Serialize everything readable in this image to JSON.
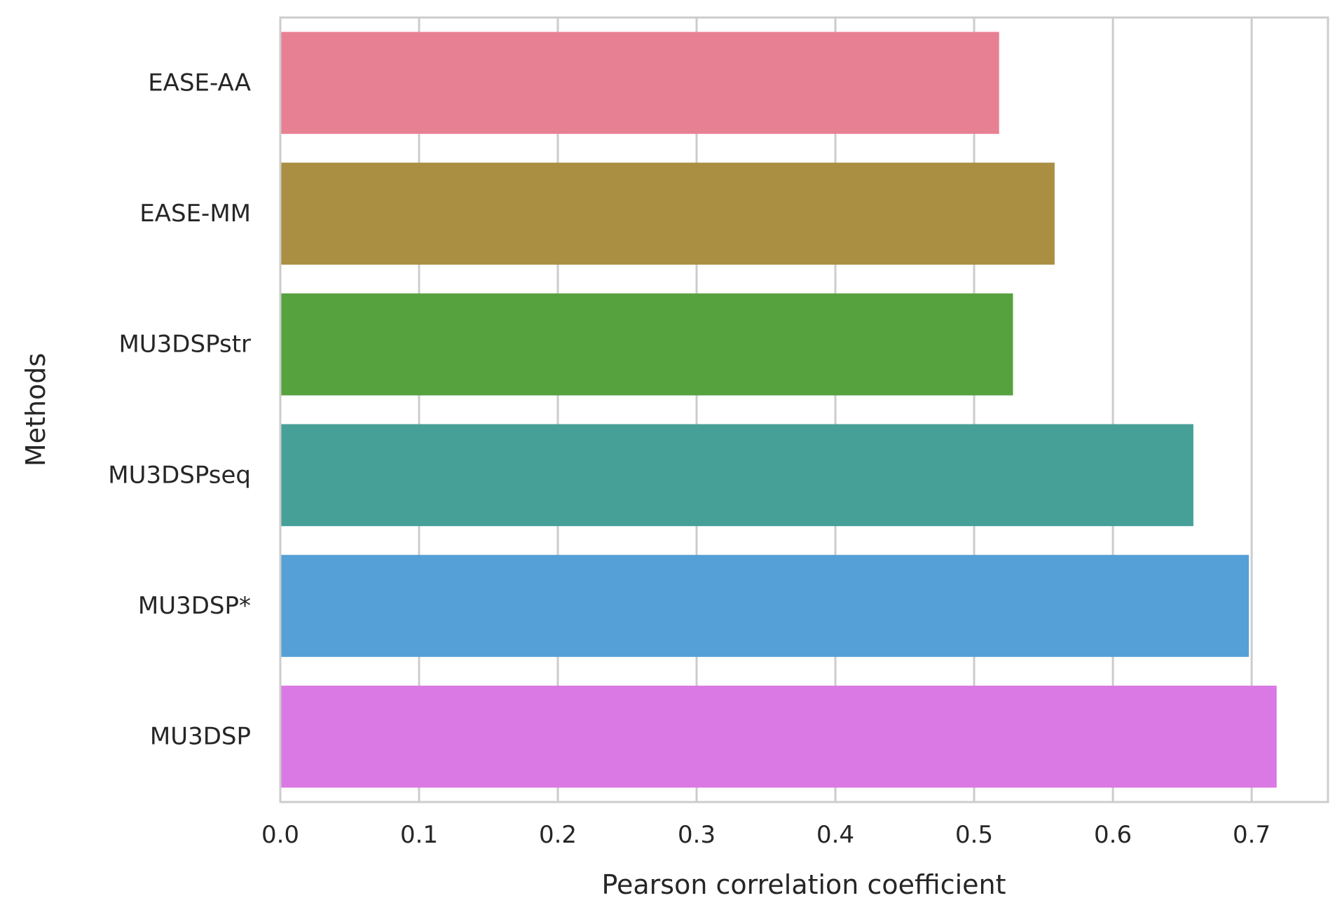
{
  "chart_data": {
    "type": "bar",
    "orientation": "horizontal",
    "xlabel": "Pearson correlation coefficient",
    "ylabel": "Methods",
    "xlim": [
      0.0,
      0.755
    ],
    "xticks": [
      0.0,
      0.1,
      0.2,
      0.3,
      0.4,
      0.5,
      0.6,
      0.7
    ],
    "xtick_labels": [
      "0.0",
      "0.1",
      "0.2",
      "0.3",
      "0.4",
      "0.5",
      "0.6",
      "0.7"
    ],
    "categories": [
      "EASE-AA",
      "EASE-MM",
      "MU3DSPstr",
      "MU3DSPseq",
      "MU3DSP*",
      "MU3DSP"
    ],
    "values": [
      0.518,
      0.558,
      0.528,
      0.658,
      0.698,
      0.718
    ],
    "colors": [
      "#e88093",
      "#aa8f42",
      "#56a23e",
      "#47a098",
      "#54a0d7",
      "#da78e4"
    ],
    "grid": true,
    "legend": "none"
  }
}
